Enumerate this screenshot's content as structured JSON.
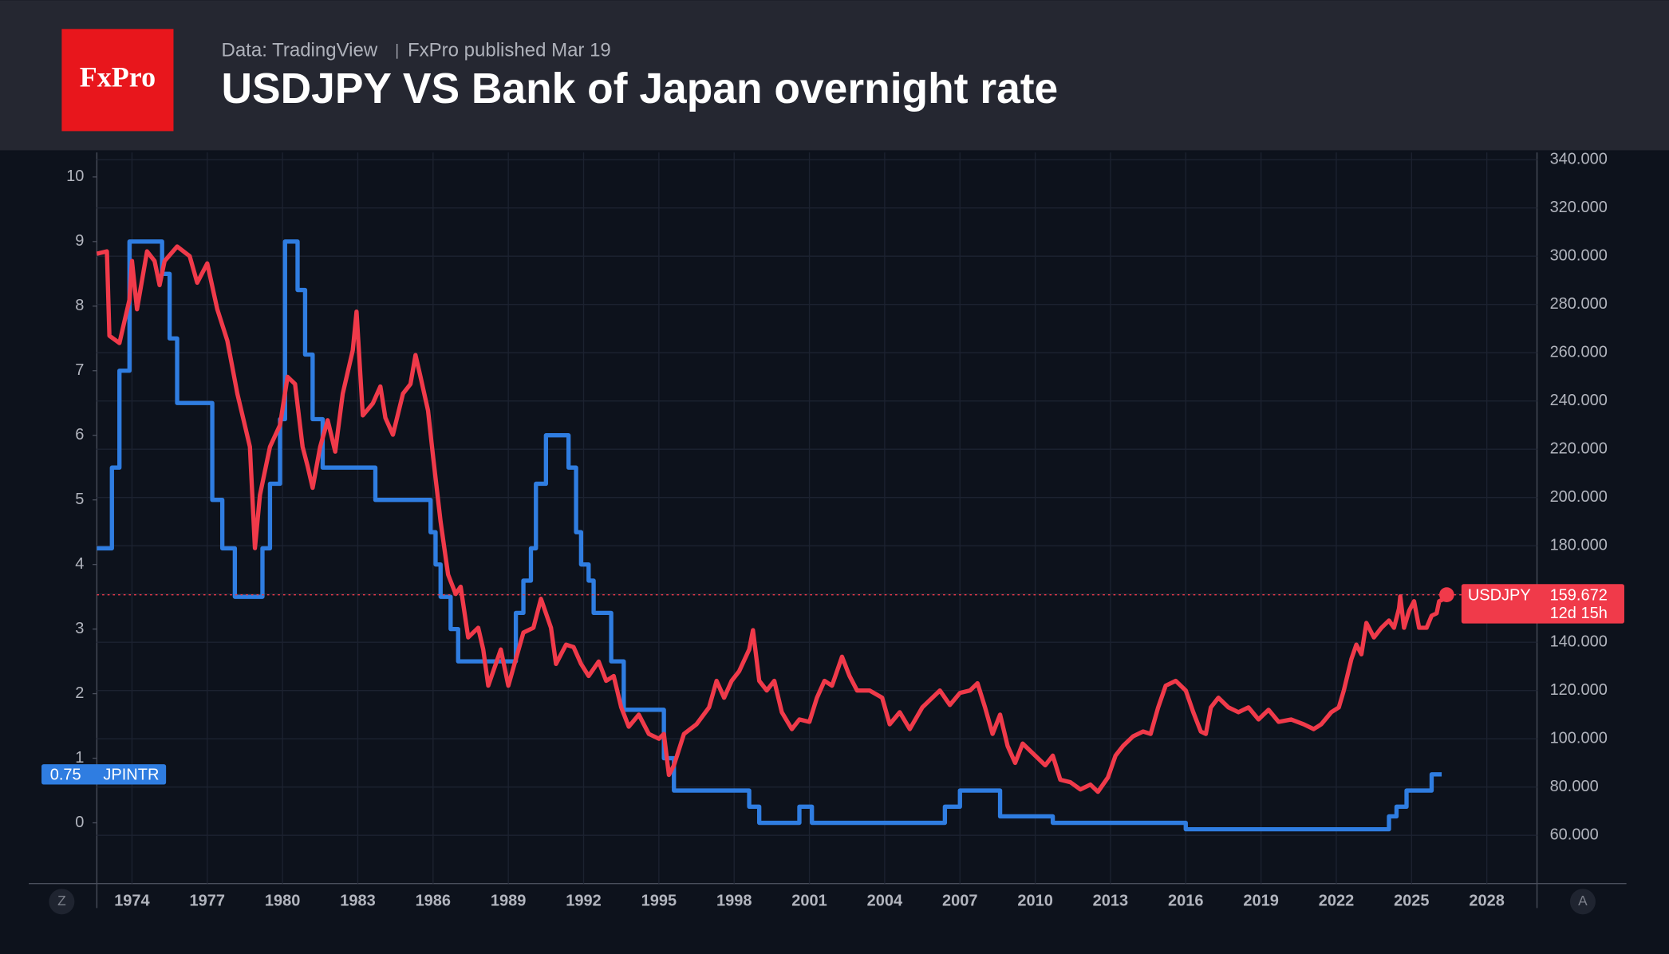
{
  "chart_data": {
    "type": "line",
    "logo": "FxPro",
    "source": "Data: TradingView",
    "published": "FxPro published Mar 19",
    "title": "USDJPY VS Bank of Japan overnight rate",
    "xlim": [
      1972.6,
      2030
    ],
    "xticks": [
      1974,
      1977,
      1980,
      1983,
      1986,
      1989,
      1992,
      1995,
      1998,
      2001,
      2004,
      2007,
      2010,
      2013,
      2016,
      2019,
      2022,
      2025,
      2028
    ],
    "ylim": [
      -0.94,
      10.38
    ],
    "yticks": [
      0,
      1,
      2,
      3,
      4,
      5,
      6,
      7,
      8,
      9,
      10
    ],
    "y2lim": [
      40,
      343
    ],
    "y2ticks": [
      {
        "value": 60,
        "label": "60.000"
      },
      {
        "value": 80,
        "label": "80.000"
      },
      {
        "value": 100,
        "label": "100.000"
      },
      {
        "value": 120,
        "label": "120.000"
      },
      {
        "value": 140,
        "label": "140.000"
      },
      {
        "value": 160,
        "label": "160.000"
      },
      {
        "value": 180,
        "label": "180.000"
      },
      {
        "value": 200,
        "label": "200.000"
      },
      {
        "value": 220,
        "label": "220.000"
      },
      {
        "value": 240,
        "label": "240.000"
      },
      {
        "value": 260,
        "label": "260.000"
      },
      {
        "value": 280,
        "label": "280.000"
      },
      {
        "value": 300,
        "label": "300.000"
      },
      {
        "value": 320,
        "label": "320.000"
      },
      {
        "value": 340,
        "label": "340.000"
      }
    ],
    "grid": true,
    "buttons": [
      "Z",
      "A"
    ],
    "series": [
      {
        "name": "JPINTR",
        "color": "#2f7de1",
        "axis": "y",
        "step": "after",
        "last_value_label": "0.75",
        "x": [
          1972.6,
          1973.2,
          1973.5,
          1973.9,
          1975.2,
          1975.5,
          1975.8,
          1977.2,
          1977.6,
          1978.1,
          1979.2,
          1979.5,
          1979.9,
          1980.1,
          1980.6,
          1980.9,
          1981.2,
          1981.6,
          1983.7,
          1985.9,
          1986.1,
          1986.3,
          1986.7,
          1987.0,
          1989.3,
          1989.6,
          1989.9,
          1990.1,
          1990.5,
          1991.4,
          1991.7,
          1991.9,
          1992.2,
          1992.4,
          1993.1,
          1993.6,
          1995.2,
          1995.6,
          1998.6,
          1999.0,
          2000.6,
          2001.1,
          2006.4,
          2007.0,
          2008.6,
          2010.7,
          2016.0,
          2024.1,
          2024.4,
          2024.8,
          2025.8,
          2026.2
        ],
        "values": [
          4.25,
          5.5,
          7,
          9,
          8.5,
          7.5,
          6.5,
          5,
          4.25,
          3.5,
          4.25,
          5.25,
          6.25,
          9,
          8.25,
          7.25,
          6.25,
          5.5,
          5,
          4.5,
          4,
          3.5,
          3,
          2.5,
          3.25,
          3.75,
          4.25,
          5.25,
          6,
          5.5,
          4.5,
          4,
          3.75,
          3.25,
          2.5,
          1.75,
          1,
          0.5,
          0.25,
          0,
          0.25,
          0,
          0.25,
          0.5,
          0.1,
          0,
          -0.1,
          0.1,
          0.25,
          0.5,
          0.75,
          0.75
        ]
      },
      {
        "name": "USDJPY",
        "color": "#f03a4a",
        "axis": "y2",
        "last_value_label": "159.672",
        "countdown": "12d 15h",
        "x": [
          1972.6,
          1973.0,
          1973.1,
          1973.5,
          1973.9,
          1974.0,
          1974.2,
          1974.6,
          1974.9,
          1975.1,
          1975.3,
          1975.8,
          1976.3,
          1976.6,
          1977.0,
          1977.4,
          1977.8,
          1978.2,
          1978.7,
          1978.9,
          1979.1,
          1979.5,
          1979.9,
          1980.2,
          1980.5,
          1980.8,
          1981.0,
          1981.2,
          1981.5,
          1981.8,
          1982.1,
          1982.4,
          1982.8,
          1982.95,
          1983.2,
          1983.6,
          1983.9,
          1984.1,
          1984.4,
          1984.8,
          1985.1,
          1985.3,
          1985.5,
          1985.8,
          1986.0,
          1986.3,
          1986.6,
          1986.9,
          1987.1,
          1987.4,
          1987.8,
          1988.0,
          1988.2,
          1988.7,
          1989.0,
          1989.3,
          1989.6,
          1990.0,
          1990.3,
          1990.7,
          1990.9,
          1991.3,
          1991.6,
          1991.9,
          1992.2,
          1992.6,
          1992.9,
          1993.2,
          1993.5,
          1993.8,
          1994.2,
          1994.6,
          1995.0,
          1995.2,
          1995.4,
          1995.6,
          1996.0,
          1996.5,
          1997.0,
          1997.3,
          1997.6,
          1997.9,
          1998.2,
          1998.6,
          1998.75,
          1999.0,
          1999.3,
          1999.6,
          1999.9,
          2000.3,
          2000.6,
          2001.0,
          2001.3,
          2001.6,
          2001.9,
          2002.1,
          2002.3,
          2002.6,
          2002.9,
          2003.4,
          2003.9,
          2004.2,
          2004.6,
          2005.0,
          2005.5,
          2005.9,
          2006.2,
          2006.6,
          2007.0,
          2007.4,
          2007.7,
          2008.0,
          2008.3,
          2008.6,
          2008.9,
          2009.2,
          2009.5,
          2010.0,
          2010.4,
          2010.7,
          2011.0,
          2011.4,
          2011.8,
          2012.2,
          2012.5,
          2012.9,
          2013.2,
          2013.5,
          2013.9,
          2014.3,
          2014.6,
          2014.9,
          2015.2,
          2015.6,
          2016.0,
          2016.3,
          2016.6,
          2016.8,
          2017.0,
          2017.3,
          2017.7,
          2018.1,
          2018.5,
          2018.9,
          2019.3,
          2019.7,
          2020.2,
          2020.7,
          2021.1,
          2021.4,
          2021.8,
          2022.1,
          2022.3,
          2022.6,
          2022.8,
          2023.0,
          2023.2,
          2023.5,
          2023.8,
          2024.1,
          2024.3,
          2024.5,
          2024.55,
          2024.7,
          2024.9,
          2025.1,
          2025.3,
          2025.6,
          2025.8,
          2026.0,
          2026.1,
          2026.3,
          2026.4
        ],
        "values": [
          301,
          302,
          267,
          264,
          282,
          298,
          278,
          302,
          298,
          288,
          298,
          304,
          300,
          289,
          297,
          278,
          265,
          243,
          221,
          179,
          201,
          221,
          230,
          250,
          247,
          221,
          213,
          204,
          221,
          232,
          219,
          243,
          261,
          277,
          234,
          239,
          246,
          233,
          226,
          243,
          247,
          259,
          250,
          236,
          217,
          190,
          168,
          160,
          163,
          142,
          146,
          137,
          122,
          137,
          122,
          133,
          144,
          146,
          158,
          146,
          131,
          139,
          138,
          131,
          126,
          132,
          124,
          126,
          113,
          105,
          110,
          102,
          100,
          102,
          85,
          89,
          102,
          106,
          113,
          124,
          117,
          124,
          128,
          137,
          145,
          124,
          120,
          124,
          111,
          104,
          108,
          107,
          117,
          124,
          122,
          128,
          134,
          126,
          120,
          120,
          117,
          106,
          111,
          104,
          113,
          117,
          120,
          114,
          119,
          120,
          123,
          113,
          102,
          110,
          97,
          90,
          98,
          93,
          89,
          93,
          83,
          82,
          79,
          81,
          78,
          84,
          93,
          97,
          101,
          103,
          102,
          113,
          122,
          124,
          120,
          111,
          103,
          102,
          113,
          117,
          113,
          111,
          113,
          108,
          112,
          107,
          108,
          106,
          104,
          106,
          111,
          113,
          120,
          133,
          139,
          135,
          148,
          142,
          146,
          149,
          146,
          154,
          159,
          146,
          153,
          157,
          146,
          146,
          151,
          152,
          157,
          158,
          159.672
        ]
      }
    ]
  }
}
